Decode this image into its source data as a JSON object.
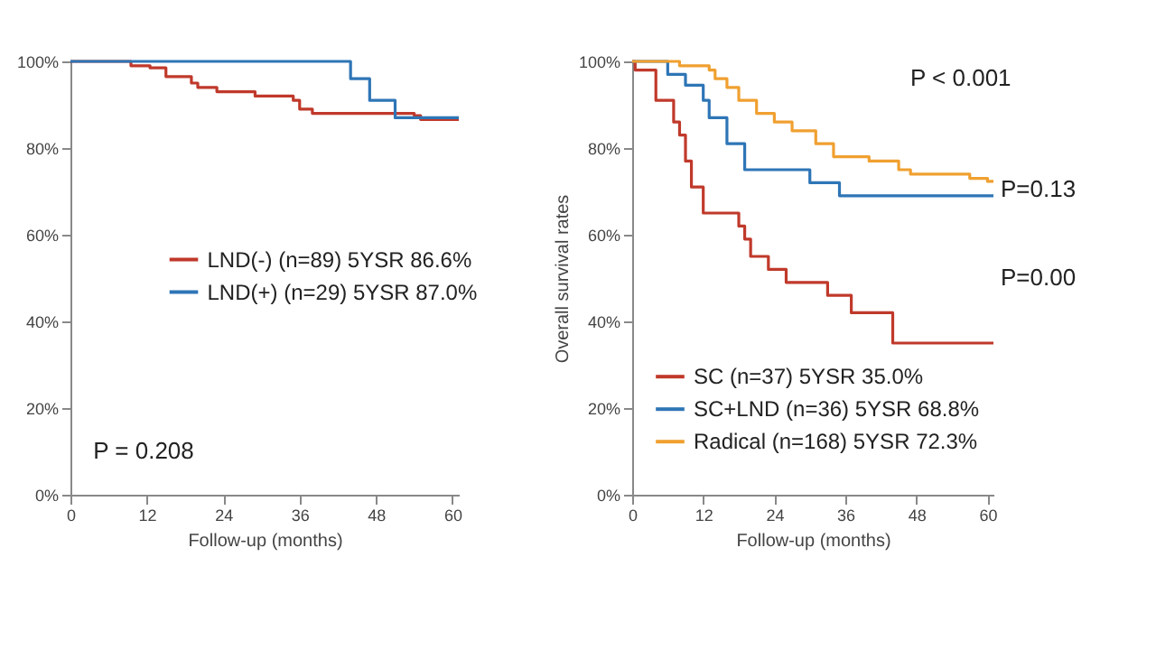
{
  "chart_data": [
    {
      "type": "step",
      "xlabel": "Follow-up (months)",
      "xlim": [
        0,
        61
      ],
      "xticks": [
        0,
        12,
        24,
        36,
        48,
        60
      ],
      "ylim": [
        0,
        100
      ],
      "yticks": [
        {
          "value": 0,
          "label": "0%"
        },
        {
          "value": 20,
          "label": "20%"
        },
        {
          "value": 40,
          "label": "40%"
        },
        {
          "value": 60,
          "label": "60%"
        },
        {
          "value": 80,
          "label": "80%"
        },
        {
          "value": 100,
          "label": "100%"
        }
      ],
      "grid": false,
      "legend": "right",
      "annotations": [
        "P = 0.208"
      ],
      "series": [
        {
          "name": "LND(-) (n=89) 5YSR 86.6%",
          "color": "#c0392b",
          "x": [
            0,
            9.5,
            12.5,
            15,
            19,
            20,
            23,
            29,
            35,
            36,
            38,
            54,
            55,
            61
          ],
          "values": [
            100,
            99,
            98.5,
            96.5,
            95,
            94,
            93,
            92,
            91,
            89,
            88,
            87.5,
            86.6,
            86.6
          ]
        },
        {
          "name": "LND(+) (n=29) 5YSR 87.0%",
          "color": "#2e75b6",
          "x": [
            0,
            44,
            47,
            51,
            61
          ],
          "values": [
            100,
            96,
            91,
            87,
            87
          ]
        }
      ]
    },
    {
      "type": "step",
      "xlabel": "Follow-up (months)",
      "ylabel": "Overall survival rates",
      "xlim": [
        0,
        61
      ],
      "xticks": [
        0,
        12,
        24,
        36,
        48,
        60
      ],
      "ylim": [
        0,
        100
      ],
      "yticks": [
        {
          "value": 0,
          "label": "0%"
        },
        {
          "value": 20,
          "label": "20%"
        },
        {
          "value": 40,
          "label": "40%"
        },
        {
          "value": 60,
          "label": "60%"
        },
        {
          "value": 80,
          "label": "80%"
        },
        {
          "value": 100,
          "label": "100%"
        }
      ],
      "grid": false,
      "legend": "bottom left",
      "annotations": [
        "P < 0.001",
        {
          "text": "P=0.13",
          "x": 61,
          "y": 70.5
        },
        "P=0.00"
      ],
      "series": [
        {
          "name": "SC (n=37) 5YSR 35.0%",
          "color": "#c0392b",
          "x": [
            0,
            0.5,
            4,
            7,
            8,
            9,
            10,
            12,
            18,
            19,
            20,
            23,
            26,
            33,
            37,
            44,
            61
          ],
          "values": [
            100,
            98,
            91,
            86,
            83,
            77,
            71,
            65,
            62,
            59,
            55,
            52,
            49,
            46,
            42,
            35,
            35
          ]
        },
        {
          "name": "SC+LND (n=36) 5YSR 68.8%",
          "color": "#2e75b6",
          "x": [
            0,
            6,
            9,
            12,
            13,
            16,
            19,
            30,
            35,
            61
          ],
          "values": [
            100,
            97,
            94.5,
            91,
            87,
            81,
            75,
            72,
            69,
            69
          ]
        },
        {
          "name": "Radical (n=168) 5YSR 72.3%",
          "color": "#f0a030",
          "x": [
            0,
            6,
            8,
            13,
            14,
            16,
            18,
            21,
            24,
            27,
            31,
            34,
            40,
            45,
            47,
            57,
            60,
            61
          ],
          "values": [
            100,
            100,
            99,
            98,
            96,
            94,
            91,
            88,
            86,
            84,
            81,
            78,
            77,
            75,
            74,
            73,
            72.3,
            72.3
          ]
        }
      ]
    }
  ]
}
